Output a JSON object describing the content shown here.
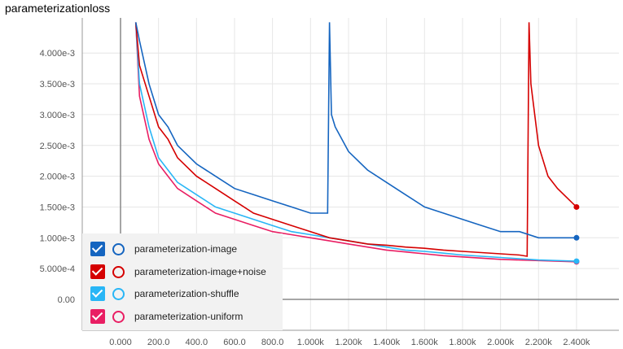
{
  "chart_data": {
    "type": "line",
    "title": "parameterizationloss",
    "xlabel": "",
    "ylabel": "",
    "xlim": [
      -200,
      2600
    ],
    "ylim": [
      -0.0005,
      0.0045
    ],
    "x_ticks": [
      "0.000",
      "200.0",
      "400.0",
      "600.0",
      "800.0",
      "1.000k",
      "1.200k",
      "1.400k",
      "1.600k",
      "1.800k",
      "2.000k",
      "2.200k",
      "2.400k"
    ],
    "x_tick_values": [
      0,
      200,
      400,
      600,
      800,
      1000,
      1200,
      1400,
      1600,
      1800,
      2000,
      2200,
      2400
    ],
    "y_ticks": [
      "0.00",
      "5.000e-4",
      "1.000e-3",
      "1.500e-3",
      "2.000e-3",
      "2.500e-3",
      "3.000e-3",
      "3.500e-3",
      "4.000e-3"
    ],
    "y_tick_values": [
      0,
      0.0005,
      0.001,
      0.0015,
      0.002,
      0.0025,
      0.003,
      0.0035,
      0.004
    ],
    "grid": true,
    "legend_position": "bottom-left",
    "series": [
      {
        "name": "parameterization-image",
        "color": "#1565c0",
        "x": [
          80,
          100,
          150,
          200,
          250,
          300,
          400,
          500,
          600,
          700,
          800,
          900,
          1000,
          1050,
          1090,
          1100,
          1110,
          1130,
          1200,
          1300,
          1400,
          1500,
          1600,
          1700,
          1800,
          1900,
          2000,
          2100,
          2200,
          2300,
          2400
        ],
        "y": [
          0.0045,
          0.0042,
          0.0035,
          0.003,
          0.0028,
          0.0025,
          0.0022,
          0.002,
          0.0018,
          0.0017,
          0.0016,
          0.0015,
          0.0014,
          0.0014,
          0.0014,
          0.0045,
          0.003,
          0.0028,
          0.0024,
          0.0021,
          0.0019,
          0.0017,
          0.0015,
          0.0014,
          0.0013,
          0.0012,
          0.0011,
          0.0011,
          0.001,
          0.001,
          0.001
        ]
      },
      {
        "name": "parameterization-image+noise",
        "color": "#d50000",
        "x": [
          80,
          100,
          150,
          200,
          250,
          300,
          400,
          500,
          600,
          700,
          800,
          900,
          1000,
          1100,
          1200,
          1300,
          1400,
          1500,
          1600,
          1700,
          1800,
          1900,
          2000,
          2100,
          2140,
          2150,
          2160,
          2200,
          2250,
          2300,
          2400
        ],
        "y": [
          0.0045,
          0.0038,
          0.0033,
          0.0028,
          0.0026,
          0.0023,
          0.002,
          0.0018,
          0.0016,
          0.0014,
          0.0013,
          0.0012,
          0.0011,
          0.001,
          0.00095,
          0.0009,
          0.00088,
          0.00085,
          0.00083,
          0.0008,
          0.00078,
          0.00076,
          0.00074,
          0.00072,
          0.0007,
          0.0045,
          0.0035,
          0.0025,
          0.002,
          0.0018,
          0.0015
        ]
      },
      {
        "name": "parameterization-shuffle",
        "color": "#29b6f6",
        "x": [
          80,
          100,
          150,
          200,
          250,
          300,
          400,
          500,
          600,
          700,
          800,
          900,
          1000,
          1100,
          1200,
          1300,
          1400,
          1500,
          1600,
          1700,
          1800,
          1900,
          2000,
          2100,
          2200,
          2300,
          2400
        ],
        "y": [
          0.0045,
          0.0035,
          0.0028,
          0.0023,
          0.0021,
          0.0019,
          0.0017,
          0.0015,
          0.0014,
          0.0013,
          0.0012,
          0.0011,
          0.00105,
          0.001,
          0.00095,
          0.0009,
          0.00085,
          0.0008,
          0.00078,
          0.00075,
          0.00072,
          0.0007,
          0.00068,
          0.00066,
          0.00064,
          0.00063,
          0.00062
        ]
      },
      {
        "name": "parameterization-uniform",
        "color": "#e91e63",
        "x": [
          80,
          100,
          150,
          200,
          250,
          300,
          400,
          500,
          600,
          700,
          800,
          900,
          1000,
          1100,
          1200,
          1300,
          1400,
          1500,
          1600,
          1700,
          1800,
          1900,
          2000,
          2100,
          2200,
          2300,
          2400
        ],
        "y": [
          0.0045,
          0.0033,
          0.0026,
          0.0022,
          0.002,
          0.0018,
          0.0016,
          0.0014,
          0.0013,
          0.0012,
          0.0011,
          0.00105,
          0.001,
          0.00095,
          0.0009,
          0.00085,
          0.0008,
          0.00077,
          0.00074,
          0.00071,
          0.00069,
          0.00067,
          0.00065,
          0.00064,
          0.00063,
          0.00062,
          0.00061
        ]
      }
    ]
  },
  "legend": {
    "items": [
      {
        "label": "parameterization-image",
        "color": "#1565c0"
      },
      {
        "label": "parameterization-image+noise",
        "color": "#d50000"
      },
      {
        "label": "parameterization-shuffle",
        "color": "#29b6f6"
      },
      {
        "label": "parameterization-uniform",
        "color": "#e91e63"
      }
    ]
  }
}
